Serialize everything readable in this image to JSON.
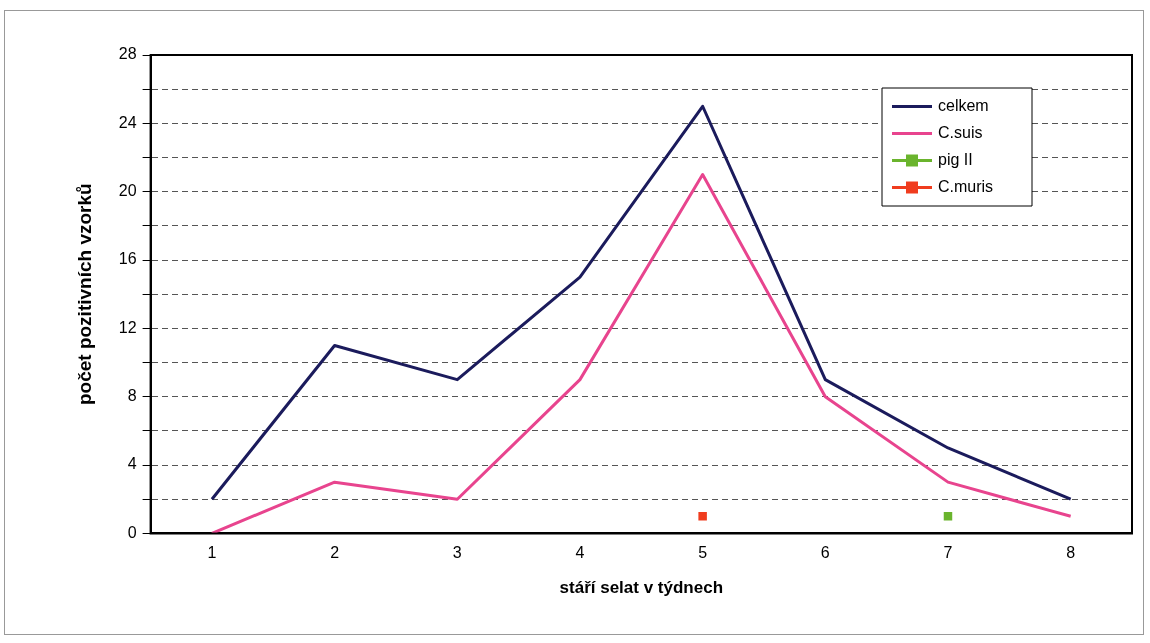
{
  "chart_data": {
    "type": "line",
    "xlabel": "stáří selat v týdnech",
    "ylabel": "počet pozitivních vzorků",
    "categories": [
      "1",
      "2",
      "3",
      "4",
      "5",
      "6",
      "7",
      "8"
    ],
    "ylim": [
      0,
      28
    ],
    "yticks": [
      0,
      {
        "value": 2,
        "label": null
      },
      4,
      {
        "value": 6,
        "label": null
      },
      8,
      {
        "value": 10,
        "label": null
      },
      12,
      {
        "value": 14,
        "label": null
      },
      16,
      {
        "value": 18,
        "label": null
      },
      20,
      {
        "value": 22,
        "label": null
      },
      24,
      {
        "value": 26,
        "label": null
      },
      28
    ],
    "grid": "y",
    "legend": "top right",
    "series": [
      {
        "name": "celkem",
        "color": "#1b1b5c",
        "marker": "none",
        "values": [
          2,
          11,
          9,
          15,
          25,
          9,
          5,
          2
        ]
      },
      {
        "name": "C.suis",
        "color": "#e8448e",
        "marker": "none",
        "values": [
          0,
          3,
          2,
          9,
          21,
          8,
          3,
          1
        ]
      },
      {
        "name": "pig II",
        "color": "#6ab42d",
        "marker": "square",
        "values": [
          null,
          null,
          null,
          null,
          null,
          null,
          1,
          null
        ]
      },
      {
        "name": "C.muris",
        "color": "#f03c1e",
        "marker": "square",
        "values": [
          null,
          null,
          null,
          null,
          1,
          null,
          null,
          null
        ]
      }
    ]
  }
}
